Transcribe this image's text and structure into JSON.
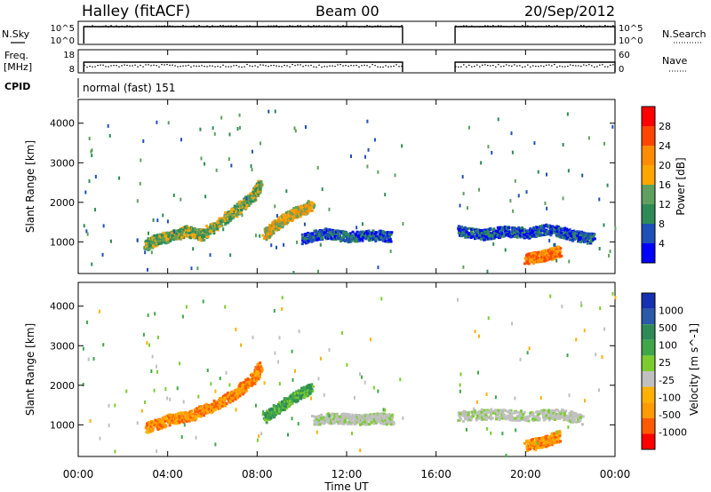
{
  "header": {
    "title": "Halley (fitACF)",
    "beam": "Beam 00",
    "date": "20/Sep/2012"
  },
  "strip_labels": {
    "nsky": "N.Sky",
    "freq_line1": "Freq.",
    "freq_line2": "[MHz]",
    "cpid": "CPID",
    "nsearch": "N.Search",
    "nave": "Nave",
    "nsky_top": "10^5",
    "nsky_bottom": "10^0",
    "nsearch_top": "10^5",
    "nsearch_bottom": "10^0",
    "freq_top": "18",
    "freq_bottom": "8",
    "nave_top": "60",
    "nave_bottom": "0",
    "cpid_text": "normal (fast) 151"
  },
  "x_axis": {
    "label": "Time UT",
    "ticks": [
      "00:00",
      "04:00",
      "08:00",
      "12:00",
      "16:00",
      "20:00",
      "00:00"
    ]
  },
  "colors": {
    "power_scale": [
      "#0000ff",
      "#1f4fb8",
      "#2e8b57",
      "#5fa05f",
      "#ffa500",
      "#ff8c00",
      "#ff4500",
      "#ff0000"
    ],
    "velocity_scale": [
      "#ff0000",
      "#ff5a00",
      "#ff9a00",
      "#ffb000",
      "#c0c0c0",
      "#7ccc30",
      "#3fa64a",
      "#2e8b57",
      "#2a5aa8",
      "#1530b0"
    ]
  },
  "chart_data": [
    {
      "type": "line",
      "title": "N.Sky / N.Search",
      "x_unit": "hours UT",
      "coverage_hours": [
        [
          0.25,
          14.5
        ],
        [
          16.85,
          24.0
        ]
      ],
      "ylim": [
        "10^0",
        "10^5"
      ]
    },
    {
      "type": "scatter",
      "title": "Freq. [MHz] / Nave",
      "ylim_left": [
        8,
        18
      ],
      "ylim_right": [
        0,
        60
      ],
      "coverage_hours": [
        [
          0.25,
          14.5
        ],
        [
          16.85,
          24.0
        ]
      ]
    },
    {
      "type": "heatmap",
      "title": "Power [dB]",
      "ylabel": "Slant Range [km]",
      "ylim": [
        200,
        4600
      ],
      "yticks": [
        1000,
        2000,
        3000,
        4000
      ],
      "colorbar_ticks": [
        4,
        8,
        12,
        16,
        20,
        24,
        28
      ],
      "colorbar_label": "Power [dB]",
      "features": [
        {
          "x": [
            3.0,
            3.5,
            4.0,
            4.8,
            5.5,
            6.5,
            7.2,
            7.8,
            8.1
          ],
          "y": [
            950,
            1100,
            1150,
            1300,
            1200,
            1600,
            1900,
            2200,
            2500
          ],
          "level": 16
        },
        {
          "x": [
            8.3,
            8.8,
            9.3,
            9.8,
            10.4
          ],
          "y": [
            1200,
            1450,
            1650,
            1800,
            1950
          ],
          "level": 20
        },
        {
          "x": [
            10.0,
            11.0,
            12.0,
            13.0,
            14.0
          ],
          "y": [
            1100,
            1250,
            1150,
            1200,
            1150
          ],
          "level": 6
        },
        {
          "x": [
            17.0,
            18.0,
            19.0,
            20.0,
            21.0,
            22.0,
            23.0
          ],
          "y": [
            1300,
            1200,
            1300,
            1250,
            1350,
            1200,
            1100
          ],
          "level": 8
        },
        {
          "x": [
            20.0,
            20.5,
            21.0,
            21.5
          ],
          "y": [
            600,
            650,
            700,
            800
          ],
          "level": 24
        }
      ]
    },
    {
      "type": "heatmap",
      "title": "Velocity [m s^-1]",
      "ylabel": "Slant Range [km]",
      "ylim": [
        200,
        4600
      ],
      "yticks": [
        1000,
        2000,
        3000,
        4000
      ],
      "colorbar_ticks": [
        1000,
        500,
        100,
        25,
        -25,
        -100,
        -500,
        -1000
      ],
      "colorbar_label": "Velocity [m s^-1]",
      "features": [
        {
          "x": [
            3.0,
            4.0,
            5.0,
            6.0,
            7.0,
            7.8,
            8.1
          ],
          "y": [
            950,
            1150,
            1250,
            1500,
            1800,
            2200,
            2500
          ],
          "level": -100
        },
        {
          "x": [
            8.3,
            9.0,
            9.8,
            10.4
          ],
          "y": [
            1200,
            1500,
            1800,
            1950
          ],
          "level": 100
        },
        {
          "x": [
            10.5,
            11.5,
            12.5,
            13.5,
            14.0
          ],
          "y": [
            1150,
            1200,
            1150,
            1200,
            1150
          ],
          "level": 0
        },
        {
          "x": [
            17.0,
            18.5,
            20.0,
            21.5,
            22.5
          ],
          "y": [
            1250,
            1300,
            1250,
            1300,
            1150
          ],
          "level": 0
        },
        {
          "x": [
            20.0,
            20.8,
            21.5
          ],
          "y": [
            500,
            600,
            750
          ],
          "level": -100
        }
      ]
    }
  ]
}
